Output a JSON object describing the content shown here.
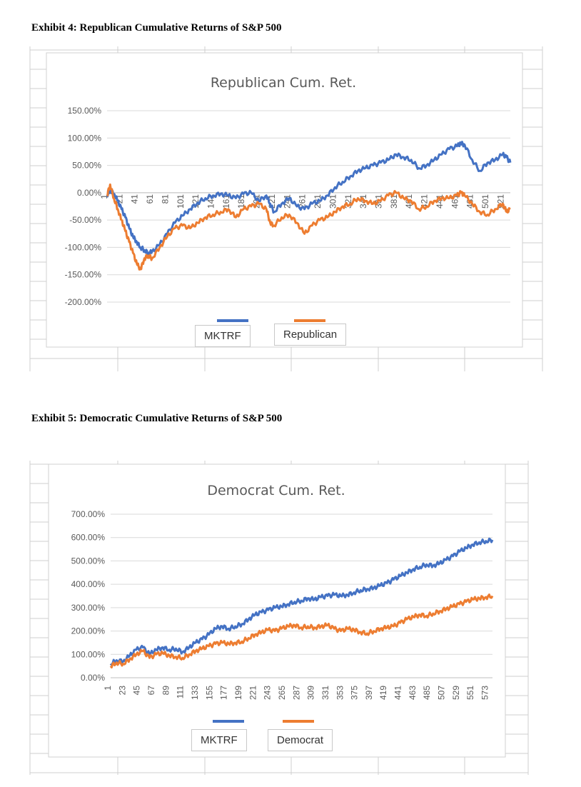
{
  "exhibits": [
    {
      "title": "Exhibit  4: Republican  Cumulative  Returns  of S&P 500"
    },
    {
      "title": "Exhibit  5: Democratic  Cumulative  Returns  of S&P 500"
    }
  ],
  "colors": {
    "mktrf": "#4472c4",
    "party": "#ed7d31",
    "grid": "#d9d9d9"
  },
  "chart_data": [
    {
      "type": "line",
      "title": "Republican Cum. Ret.",
      "xlabel": "",
      "ylabel": "",
      "ylim": [
        -2.0,
        1.5
      ],
      "yticks": [
        "150.00%",
        "100.00%",
        "50.00%",
        "0.00%",
        "-50.00%",
        "-100.00%",
        "-150.00%",
        "-200.00%"
      ],
      "ytick_values": [
        1.5,
        1.0,
        0.5,
        0.0,
        -0.5,
        -1.0,
        -1.5,
        -2.0
      ],
      "xticks": [
        "1",
        "21",
        "41",
        "61",
        "81",
        "101",
        "121",
        "141",
        "161",
        "181",
        "201",
        "221",
        "241",
        "261",
        "281",
        "301",
        "321",
        "341",
        "361",
        "381",
        "401",
        "421",
        "441",
        "461",
        "481",
        "501",
        "521"
      ],
      "xticks_are_numbers": [
        1,
        21,
        41,
        61,
        81,
        101,
        121,
        141,
        161,
        181,
        201,
        221,
        241,
        261,
        281,
        301,
        321,
        341,
        361,
        381,
        401,
        421,
        441,
        461,
        481,
        501,
        521
      ],
      "xrange": [
        1,
        530
      ],
      "legend_position": "bottom",
      "grid": true,
      "series": [
        {
          "name": "MKTRF",
          "x": [
            1,
            5,
            10,
            15,
            20,
            25,
            30,
            35,
            40,
            45,
            50,
            55,
            60,
            70,
            80,
            90,
            100,
            110,
            120,
            130,
            140,
            150,
            160,
            170,
            180,
            190,
            200,
            210,
            215,
            220,
            230,
            240,
            250,
            260,
            270,
            280,
            290,
            300,
            310,
            320,
            330,
            340,
            350,
            360,
            370,
            380,
            390,
            400,
            410,
            420,
            430,
            440,
            450,
            460,
            465,
            470,
            480,
            490,
            500,
            510,
            520,
            525,
            530
          ],
          "y": [
            -0.05,
            0.05,
            -0.02,
            -0.15,
            -0.3,
            -0.45,
            -0.65,
            -0.8,
            -0.9,
            -1.0,
            -1.05,
            -1.1,
            -1.08,
            -0.95,
            -0.75,
            -0.55,
            -0.42,
            -0.3,
            -0.18,
            -0.1,
            -0.05,
            -0.02,
            -0.05,
            -0.1,
            -0.02,
            0.0,
            -0.15,
            -0.05,
            -0.2,
            -0.35,
            -0.2,
            -0.1,
            -0.25,
            -0.3,
            -0.2,
            -0.15,
            -0.05,
            0.1,
            0.2,
            0.3,
            0.4,
            0.45,
            0.5,
            0.55,
            0.6,
            0.7,
            0.65,
            0.6,
            0.45,
            0.5,
            0.6,
            0.7,
            0.8,
            0.85,
            0.9,
            0.88,
            0.6,
            0.4,
            0.55,
            0.6,
            0.7,
            0.65,
            0.55
          ]
        },
        {
          "name": "Republican",
          "x": [
            1,
            5,
            10,
            15,
            20,
            25,
            30,
            35,
            40,
            45,
            50,
            55,
            60,
            70,
            80,
            90,
            100,
            110,
            120,
            130,
            140,
            150,
            160,
            170,
            180,
            190,
            200,
            210,
            215,
            220,
            230,
            240,
            250,
            260,
            270,
            280,
            290,
            300,
            310,
            320,
            330,
            340,
            350,
            360,
            370,
            380,
            390,
            400,
            410,
            420,
            430,
            440,
            450,
            460,
            465,
            470,
            480,
            490,
            500,
            510,
            520,
            525,
            530
          ],
          "y": [
            -0.05,
            0.15,
            -0.1,
            -0.3,
            -0.5,
            -0.7,
            -0.9,
            -1.1,
            -1.3,
            -1.4,
            -1.2,
            -1.15,
            -1.2,
            -1.0,
            -0.8,
            -0.65,
            -0.6,
            -0.65,
            -0.55,
            -0.45,
            -0.4,
            -0.35,
            -0.3,
            -0.45,
            -0.3,
            -0.25,
            -0.2,
            -0.3,
            -0.55,
            -0.6,
            -0.45,
            -0.4,
            -0.55,
            -0.75,
            -0.6,
            -0.5,
            -0.45,
            -0.35,
            -0.25,
            -0.2,
            -0.1,
            -0.15,
            -0.2,
            -0.15,
            -0.05,
            0.0,
            -0.1,
            -0.15,
            -0.3,
            -0.25,
            -0.15,
            -0.1,
            -0.1,
            -0.05,
            0.0,
            -0.05,
            -0.2,
            -0.35,
            -0.4,
            -0.3,
            -0.2,
            -0.35,
            -0.3
          ]
        }
      ]
    },
    {
      "type": "line",
      "title": "Democrat Cum. Ret.",
      "xlabel": "",
      "ylabel": "",
      "ylim": [
        0.0,
        7.0
      ],
      "yticks": [
        "700.00%",
        "600.00%",
        "500.00%",
        "400.00%",
        "300.00%",
        "200.00%",
        "100.00%",
        "0.00%"
      ],
      "ytick_values": [
        7,
        6,
        5,
        4,
        3,
        2,
        1,
        0
      ],
      "xticks": [
        "1",
        "23",
        "45",
        "67",
        "89",
        "111",
        "133",
        "155",
        "177",
        "199",
        "221",
        "243",
        "265",
        "287",
        "309",
        "331",
        "353",
        "375",
        "397",
        "419",
        "441",
        "463",
        "485",
        "507",
        "529",
        "551",
        "573"
      ],
      "xticks_are_numbers": [
        1,
        23,
        45,
        67,
        89,
        111,
        133,
        155,
        177,
        199,
        221,
        243,
        265,
        287,
        309,
        331,
        353,
        375,
        397,
        419,
        441,
        463,
        485,
        507,
        529,
        551,
        573
      ],
      "xrange": [
        1,
        580
      ],
      "legend_position": "bottom",
      "grid": true,
      "series": [
        {
          "name": "MKTRF",
          "x": [
            1,
            10,
            20,
            30,
            40,
            50,
            60,
            70,
            80,
            90,
            100,
            110,
            120,
            130,
            140,
            150,
            160,
            170,
            180,
            190,
            200,
            210,
            220,
            230,
            240,
            250,
            260,
            270,
            280,
            290,
            300,
            310,
            320,
            330,
            340,
            350,
            360,
            370,
            380,
            390,
            400,
            410,
            420,
            430,
            440,
            450,
            460,
            470,
            480,
            490,
            500,
            510,
            520,
            530,
            540,
            550,
            560,
            570,
            580
          ],
          "y": [
            0.6,
            0.75,
            0.7,
            0.95,
            1.2,
            1.3,
            1.0,
            1.2,
            1.3,
            1.2,
            1.25,
            1.1,
            1.3,
            1.5,
            1.65,
            1.85,
            2.1,
            2.2,
            2.1,
            2.2,
            2.3,
            2.5,
            2.7,
            2.8,
            2.9,
            3.0,
            3.05,
            3.15,
            3.25,
            3.3,
            3.4,
            3.35,
            3.45,
            3.5,
            3.55,
            3.5,
            3.55,
            3.65,
            3.75,
            3.8,
            3.85,
            3.95,
            4.05,
            4.2,
            4.35,
            4.5,
            4.65,
            4.75,
            4.85,
            4.8,
            4.9,
            5.05,
            5.2,
            5.4,
            5.55,
            5.7,
            5.8,
            5.85,
            5.9
          ]
        },
        {
          "name": "Democrat",
          "x": [
            1,
            10,
            20,
            30,
            40,
            50,
            60,
            70,
            80,
            90,
            100,
            110,
            120,
            130,
            140,
            150,
            160,
            170,
            180,
            190,
            200,
            210,
            220,
            230,
            240,
            250,
            260,
            270,
            280,
            290,
            300,
            310,
            320,
            330,
            340,
            350,
            360,
            370,
            380,
            390,
            400,
            410,
            420,
            430,
            440,
            450,
            460,
            470,
            480,
            490,
            500,
            510,
            520,
            530,
            540,
            550,
            560,
            570,
            580
          ],
          "y": [
            0.5,
            0.65,
            0.6,
            0.8,
            1.0,
            1.15,
            0.85,
            1.0,
            1.05,
            0.95,
            0.9,
            0.85,
            1.0,
            1.15,
            1.25,
            1.35,
            1.45,
            1.5,
            1.45,
            1.5,
            1.55,
            1.7,
            1.85,
            1.95,
            2.05,
            2.0,
            2.1,
            2.2,
            2.25,
            2.15,
            2.2,
            2.15,
            2.2,
            2.25,
            2.1,
            2.0,
            2.1,
            2.05,
            1.95,
            1.9,
            2.0,
            2.1,
            2.15,
            2.2,
            2.35,
            2.5,
            2.6,
            2.7,
            2.65,
            2.75,
            2.85,
            2.95,
            3.05,
            3.15,
            3.25,
            3.35,
            3.4,
            3.45,
            3.5
          ]
        }
      ]
    }
  ]
}
